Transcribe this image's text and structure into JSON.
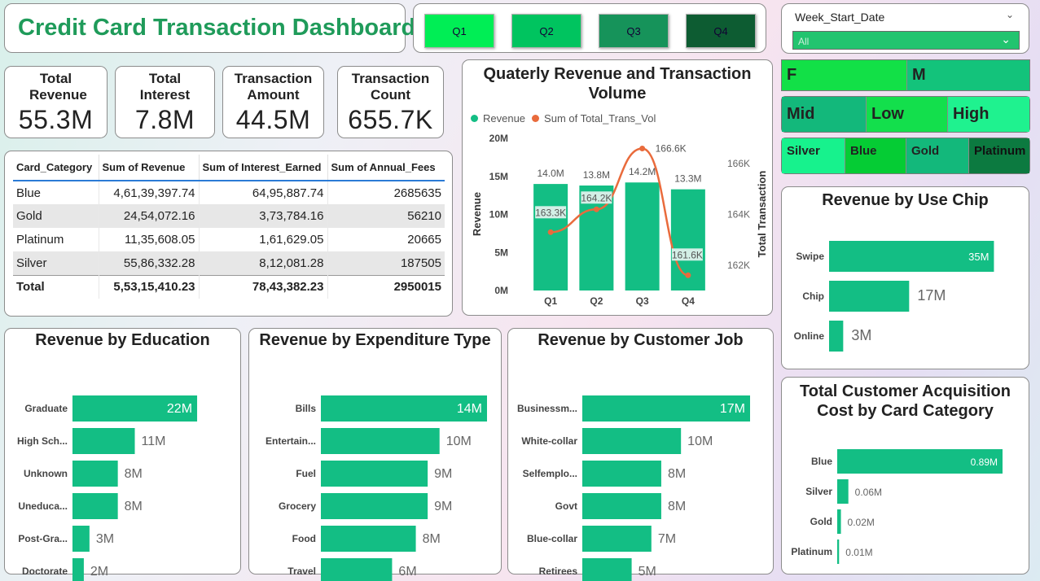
{
  "title": "Credit Card Transaction Dashboard",
  "quarters": [
    {
      "label": "Q1",
      "color": "#00ee55"
    },
    {
      "label": "Q2",
      "color": "#00c45f"
    },
    {
      "label": "Q3",
      "color": "#16935a"
    },
    {
      "label": "Q4",
      "color": "#0d5c32"
    }
  ],
  "week_filter": {
    "label": "Week_Start_Date",
    "value": "All"
  },
  "kpis": [
    {
      "label": "Total Revenue",
      "value": "55.3M"
    },
    {
      "label": "Total Interest",
      "value": "7.8M"
    },
    {
      "label": "Transaction Amount",
      "value": "44.5M"
    },
    {
      "label": "Transaction Count",
      "value": "655.7K"
    }
  ],
  "table": {
    "headers": [
      "Card_Category",
      "Sum of Revenue",
      "Sum of Interest_Earned",
      "Sum of Annual_Fees"
    ],
    "rows": [
      [
        "Blue",
        "4,61,39,397.74",
        "64,95,887.74",
        "2685635"
      ],
      [
        "Gold",
        "24,54,072.16",
        "3,73,784.16",
        "56210"
      ],
      [
        "Platinum",
        "11,35,608.05",
        "1,61,629.05",
        "20665"
      ],
      [
        "Silver",
        "55,86,332.28",
        "8,12,081.28",
        "187505"
      ]
    ],
    "total": [
      "Total",
      "5,53,15,410.23",
      "78,43,382.23",
      "2950015"
    ]
  },
  "gender_slicer": [
    {
      "label": "F",
      "color": "#12e047"
    },
    {
      "label": "M",
      "color": "#13c37b"
    }
  ],
  "income_slicer": [
    {
      "label": "Mid",
      "color": "#13b87b"
    },
    {
      "label": "Low",
      "color": "#13df4c"
    },
    {
      "label": "High",
      "color": "#1ff28f"
    }
  ],
  "card_slicer": [
    {
      "label": "Silver",
      "color": "#17f28d"
    },
    {
      "label": "Blue",
      "color": "#05cc34"
    },
    {
      "label": "Gold",
      "color": "#13b87b"
    },
    {
      "label": "Platinum",
      "color": "#0c7a40"
    }
  ],
  "bar_color": "#13be84",
  "line_color": "#e96b3c",
  "chart_data": [
    {
      "type": "bar+line",
      "title": "Quaterly Revenue and Transaction Volume",
      "legend": [
        "Revenue",
        "Sum of Total_Trans_Vol"
      ],
      "categories": [
        "Q1",
        "Q2",
        "Q3",
        "Q4"
      ],
      "series": [
        {
          "name": "Revenue",
          "values": [
            14.0,
            13.8,
            14.2,
            13.3
          ],
          "labels": [
            "14.0M",
            "13.8M",
            "14.2M",
            "13.3M"
          ]
        },
        {
          "name": "Sum of Total_Trans_Vol",
          "values": [
            163.3,
            164.2,
            166.6,
            161.6
          ],
          "labels": [
            "163.3K",
            "164.2K",
            "166.6K",
            "161.6K"
          ]
        }
      ],
      "ylabel": "Revenue",
      "y2label": "Total Transaction",
      "yticks": [
        "0M",
        "5M",
        "10M",
        "15M",
        "20M"
      ],
      "ylim": [
        0,
        20
      ],
      "y2ticks": [
        "162K",
        "164K",
        "166K"
      ],
      "y2lim": [
        161,
        167
      ],
      "legend_position": "top-left"
    },
    {
      "type": "bar",
      "title": "Revenue by Use Chip",
      "categories": [
        "Swipe",
        "Chip",
        "Online"
      ],
      "values": [
        35,
        17,
        3
      ],
      "labels": [
        "35M",
        "17M",
        "3M"
      ],
      "max": 37
    },
    {
      "type": "bar",
      "title": "Revenue by Education",
      "categories": [
        "Graduate",
        "High Sch...",
        "Unknown",
        "Uneduca...",
        "Post-Gra...",
        "Doctorate"
      ],
      "values": [
        22,
        11,
        8,
        8,
        3,
        2
      ],
      "labels": [
        "22M",
        "11M",
        "8M",
        "8M",
        "3M",
        "2M"
      ],
      "max": 23
    },
    {
      "type": "bar",
      "title": "Revenue by Expenditure Type",
      "categories": [
        "Bills",
        "Entertain...",
        "Fuel",
        "Grocery",
        "Food",
        "Travel"
      ],
      "values": [
        14,
        10,
        9,
        9,
        8,
        6
      ],
      "labels": [
        "14M",
        "10M",
        "9M",
        "9M",
        "8M",
        "6M"
      ],
      "max": 14
    },
    {
      "type": "bar",
      "title": "Revenue by Customer Job",
      "categories": [
        "Businessm...",
        "White-collar",
        "Selfemplo...",
        "Govt",
        "Blue-collar",
        "Retirees"
      ],
      "values": [
        17,
        10,
        8,
        8,
        7,
        5
      ],
      "labels": [
        "17M",
        "10M",
        "8M",
        "8M",
        "7M",
        "5M"
      ],
      "max": 17
    },
    {
      "type": "bar",
      "title": "Total Customer Acquisition Cost by Card Category",
      "categories": [
        "Blue",
        "Silver",
        "Gold",
        "Platinum"
      ],
      "values": [
        0.89,
        0.06,
        0.02,
        0.01
      ],
      "labels": [
        "0.89M",
        "0.06M",
        "0.02M",
        "0.01M"
      ],
      "max": 0.89
    }
  ]
}
